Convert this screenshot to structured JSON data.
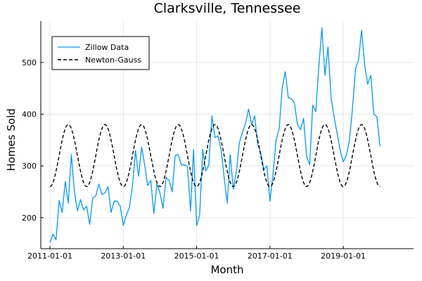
{
  "chart_data": {
    "type": "line",
    "title": "Clarksville, Tennessee",
    "xlabel": "Month",
    "ylabel": "Homes Sold",
    "xlim": [
      "2010-10-01",
      "2020-12-01"
    ],
    "ylim": [
      140,
      580
    ],
    "x_ticks": [
      "2011-01-01",
      "2013-01-01",
      "2015-01-01",
      "2017-01-01",
      "2019-01-01"
    ],
    "y_ticks": [
      200,
      300,
      400,
      500
    ],
    "grid": true,
    "legend_position": "top-left",
    "series": [
      {
        "name": "Zillow Data",
        "color": "#009AF9",
        "style": "solid",
        "start": "2011-01-01",
        "values": [
          152,
          168,
          157,
          233,
          210,
          270,
          228,
          322,
          250,
          213,
          235,
          215,
          222,
          187,
          238,
          242,
          265,
          245,
          248,
          260,
          210,
          232,
          232,
          222,
          185,
          205,
          220,
          260,
          330,
          280,
          336,
          302,
          262,
          272,
          208,
          265,
          248,
          218,
          278,
          272,
          250,
          320,
          322,
          302,
          302,
          300,
          213,
          332,
          185,
          205,
          332,
          290,
          302,
          397,
          355,
          358,
          332,
          278,
          228,
          322,
          255,
          288,
          345,
          365,
          382,
          410,
          380,
          397,
          342,
          325,
          293,
          300,
          232,
          285,
          350,
          372,
          450,
          482,
          432,
          430,
          422,
          380,
          370,
          392,
          318,
          302,
          417,
          405,
          492,
          567,
          475,
          530,
          432,
          395,
          362,
          330,
          308,
          320,
          350,
          410,
          488,
          505,
          562,
          495,
          458,
          475,
          400,
          395,
          338
        ]
      },
      {
        "name": "Newton-Gauss",
        "color": "#000000",
        "style": "dashed",
        "start": "2011-01-01",
        "model": {
          "mean": 320,
          "amplitude": 60,
          "period_months": 12,
          "peak_month": 7
        },
        "count": 109
      }
    ]
  }
}
